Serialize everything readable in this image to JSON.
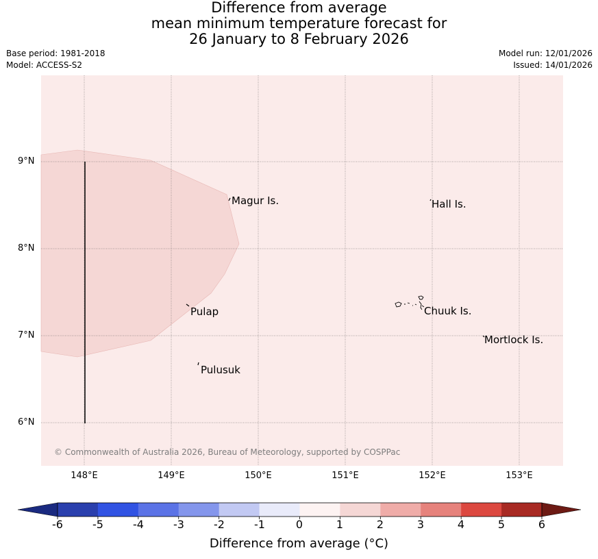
{
  "title": {
    "line1": "Difference from average",
    "line2": "mean minimum temperature forecast for",
    "line3": "26 January to 8 February 2026"
  },
  "meta": {
    "base_period": "Base period: 1981-2018",
    "model": "Model: ACCESS-S2",
    "model_run": "Model run: 12/01/2026",
    "issued": "Issued: 14/01/2026"
  },
  "map": {
    "background_color": "#fbebea",
    "anomaly_region_color": "#f5d7d5",
    "latitude_labels": [
      "9°N",
      "8°N",
      "7°N",
      "6°N"
    ],
    "longitude_labels": [
      "148°E",
      "149°E",
      "150°E",
      "151°E",
      "152°E",
      "153°E"
    ],
    "places": [
      "Magur Is.",
      "Hall Is.",
      "Pulap",
      "Chuuk Is.",
      "Mortlock Is.",
      "Pulusuk"
    ],
    "copyright": "© Commonwealth of Australia 2026, Bureau of Meteorology, supported by COSPPac"
  },
  "colorbar": {
    "ticks": [
      "-6",
      "-5",
      "-4",
      "-3",
      "-2",
      "-1",
      "0",
      "1",
      "2",
      "3",
      "4",
      "5",
      "6"
    ],
    "colors": [
      "#2a3fad",
      "#3153e3",
      "#5b73e6",
      "#8496ec",
      "#c2c9f3",
      "#e9ebfa",
      "#fdf3f2",
      "#f5d7d5",
      "#efaca8",
      "#e6827c",
      "#dc4840",
      "#a82a23"
    ],
    "under_color": "#1a2a80",
    "over_color": "#6d1a14",
    "label": "Difference from average (°C)"
  }
}
